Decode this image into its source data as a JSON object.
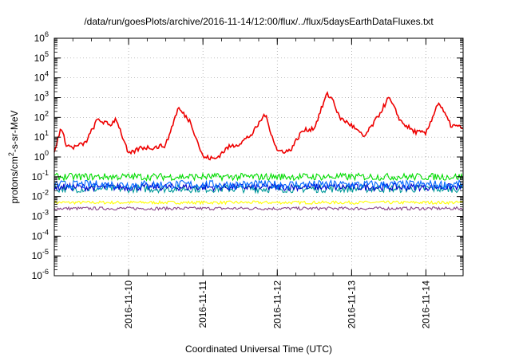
{
  "chart_data": {
    "type": "line",
    "title": "/data/run/goesPlots/archive/2016-11-14/12:00/flux/../flux/5daysEarthDataFluxes.txt",
    "xlabel": "Coordinated Universal Time (UTC)",
    "ylabel": "protons/cm2-s-sr-MeV",
    "ylabel_parts": {
      "base": "protons/cm",
      "sup": "2",
      "rest": "-s-sr-MeV"
    },
    "y_scale": "log",
    "ylim": [
      1e-06,
      1000000.0
    ],
    "y_ticks": [
      {
        "base": "10",
        "exp": "-6"
      },
      {
        "base": "10",
        "exp": "-5"
      },
      {
        "base": "10",
        "exp": "-4"
      },
      {
        "base": "10",
        "exp": "-3"
      },
      {
        "base": "10",
        "exp": "-2"
      },
      {
        "base": "10",
        "exp": "-1"
      },
      {
        "base": "10",
        "exp": "0"
      },
      {
        "base": "10",
        "exp": "1"
      },
      {
        "base": "10",
        "exp": "2"
      },
      {
        "base": "10",
        "exp": "3"
      },
      {
        "base": "10",
        "exp": "4"
      },
      {
        "base": "10",
        "exp": "5"
      },
      {
        "base": "10",
        "exp": "6"
      }
    ],
    "xlim": [
      "2016-11-09 00:00",
      "2016-11-14 12:00"
    ],
    "x_ticks": [
      "2016-11-10",
      "2016-11-11",
      "2016-11-12",
      "2016-11-13",
      "2016-11-14"
    ],
    "grid": true,
    "series_colors": [
      "#ee0000",
      "#00dd00",
      "#0066ff",
      "#009999",
      "#0000cc",
      "#ffff00",
      "#884488"
    ],
    "series": [
      {
        "color": "#ee0000",
        "x": [
          "2016-11-09 00:00",
          "2016-11-09 02:00",
          "2016-11-09 04:00",
          "2016-11-09 06:00",
          "2016-11-09 10:00",
          "2016-11-09 14:00",
          "2016-11-09 18:00",
          "2016-11-09 20:00",
          "2016-11-10 00:00",
          "2016-11-10 04:00",
          "2016-11-10 08:00",
          "2016-11-10 12:00",
          "2016-11-10 16:00",
          "2016-11-10 20:00",
          "2016-11-11 00:00",
          "2016-11-11 04:00",
          "2016-11-11 08:00",
          "2016-11-11 12:00",
          "2016-11-11 16:00",
          "2016-11-11 20:00",
          "2016-11-12 00:00",
          "2016-11-12 04:00",
          "2016-11-12 08:00",
          "2016-11-12 12:00",
          "2016-11-12 16:00",
          "2016-11-12 18:00",
          "2016-11-12 20:00",
          "2016-11-13 00:00",
          "2016-11-13 04:00",
          "2016-11-13 08:00",
          "2016-11-13 12:00",
          "2016-11-13 16:00",
          "2016-11-13 20:00",
          "2016-11-14 00:00",
          "2016-11-14 04:00",
          "2016-11-14 08:00",
          "2016-11-14 12:00"
        ],
        "y": [
          1.5,
          30,
          4,
          3,
          5,
          80,
          40,
          90,
          1.3,
          3,
          3,
          4,
          300,
          60,
          1,
          0.8,
          3,
          5,
          15,
          150,
          2,
          2,
          20,
          30,
          1500,
          800,
          100,
          40,
          10,
          80,
          1000,
          60,
          20,
          15,
          600,
          40,
          30
        ]
      },
      {
        "color": "#00dd00",
        "x": [
          "2016-11-09 00:00",
          "2016-11-10 00:00",
          "2016-11-11 00:00",
          "2016-11-12 00:00",
          "2016-11-13 00:00",
          "2016-11-14 00:00",
          "2016-11-14 12:00"
        ],
        "y": [
          0.1,
          0.1,
          0.1,
          0.1,
          0.1,
          0.1,
          0.1
        ]
      },
      {
        "color": "#0066ff",
        "x": [
          "2016-11-09 00:00",
          "2016-11-10 00:00",
          "2016-11-11 00:00",
          "2016-11-12 00:00",
          "2016-11-13 00:00",
          "2016-11-14 00:00",
          "2016-11-14 12:00"
        ],
        "y": [
          0.04,
          0.04,
          0.04,
          0.04,
          0.04,
          0.04,
          0.04
        ]
      },
      {
        "color": "#009999",
        "x": [
          "2016-11-09 00:00",
          "2016-11-10 00:00",
          "2016-11-11 00:00",
          "2016-11-12 00:00",
          "2016-11-13 00:00",
          "2016-11-14 00:00",
          "2016-11-14 12:00"
        ],
        "y": [
          0.025,
          0.025,
          0.025,
          0.025,
          0.025,
          0.025,
          0.025
        ]
      },
      {
        "color": "#0000cc",
        "x": [
          "2016-11-09 00:00",
          "2016-11-10 00:00",
          "2016-11-11 00:00",
          "2016-11-12 00:00",
          "2016-11-13 00:00",
          "2016-11-14 00:00",
          "2016-11-14 12:00"
        ],
        "y": [
          0.03,
          0.03,
          0.03,
          0.03,
          0.03,
          0.03,
          0.03
        ]
      },
      {
        "color": "#ffff00",
        "x": [
          "2016-11-09 00:00",
          "2016-11-10 00:00",
          "2016-11-11 00:00",
          "2016-11-12 00:00",
          "2016-11-13 00:00",
          "2016-11-14 00:00",
          "2016-11-14 12:00"
        ],
        "y": [
          0.005,
          0.005,
          0.005,
          0.005,
          0.005,
          0.005,
          0.005
        ]
      },
      {
        "color": "#884488",
        "x": [
          "2016-11-09 00:00",
          "2016-11-10 00:00",
          "2016-11-11 00:00",
          "2016-11-12 00:00",
          "2016-11-13 00:00",
          "2016-11-14 00:00",
          "2016-11-14 12:00"
        ],
        "y": [
          0.0025,
          0.0025,
          0.0025,
          0.0025,
          0.0025,
          0.0025,
          0.0025
        ]
      }
    ]
  }
}
